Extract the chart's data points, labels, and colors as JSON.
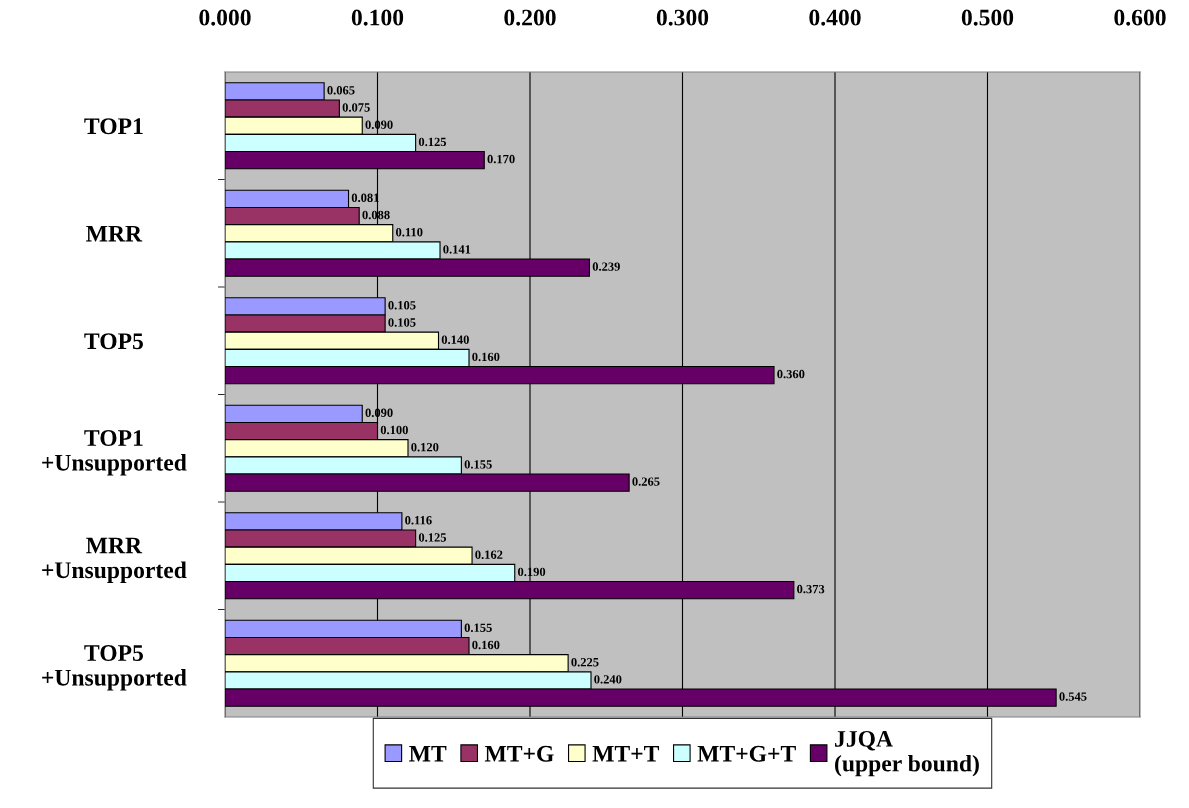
{
  "chart_data": {
    "type": "bar",
    "orientation": "horizontal",
    "categories": [
      "TOP1",
      "MRR",
      "TOP5",
      "TOP1\n+Unsupported",
      "MRR\n+Unsupported",
      "TOP5\n+Unsupported"
    ],
    "series": [
      {
        "name": "MT",
        "color": "#9999ff",
        "values": [
          0.065,
          0.081,
          0.105,
          0.09,
          0.116,
          0.155
        ],
        "value_labels": [
          "0.065",
          "0.081",
          "0.105",
          "0.090",
          "0.116",
          "0.155"
        ]
      },
      {
        "name": "MT+G",
        "color": "#993366",
        "values": [
          0.075,
          0.088,
          0.105,
          0.1,
          0.125,
          0.16
        ],
        "value_labels": [
          "0.075",
          "0.088",
          "0.105",
          "0.100",
          "0.125",
          "0.160"
        ]
      },
      {
        "name": "MT+T",
        "color": "#ffffcc",
        "values": [
          0.09,
          0.11,
          0.14,
          0.12,
          0.162,
          0.225
        ],
        "value_labels": [
          "0.090",
          "0.110",
          "0.140",
          "0.120",
          "0.162",
          "0.225"
        ]
      },
      {
        "name": "MT+G+T",
        "color": "#ccffff",
        "values": [
          0.125,
          0.141,
          0.16,
          0.155,
          0.19,
          0.24
        ],
        "value_labels": [
          "0.125",
          "0.141",
          "0.160",
          "0.155",
          "0.190",
          "0.240"
        ]
      },
      {
        "name": "JJQA\n(upper bound)",
        "color": "#660066",
        "values": [
          0.17,
          0.239,
          0.36,
          0.265,
          0.373,
          0.545
        ],
        "value_labels": [
          "0.170",
          "0.239",
          "0.360",
          "0.265",
          "0.373",
          "0.545"
        ]
      }
    ],
    "xlim": [
      0,
      0.6
    ],
    "xticks": [
      {
        "value": 0,
        "label": "0.000"
      },
      {
        "value": 0.1,
        "label": "0.100"
      },
      {
        "value": 0.2,
        "label": "0.200"
      },
      {
        "value": 0.3,
        "label": "0.300"
      },
      {
        "value": 0.4,
        "label": "0.400"
      },
      {
        "value": 0.5,
        "label": "0.500"
      },
      {
        "value": 0.6,
        "label": "0.600"
      }
    ],
    "grid": "x",
    "legend": "bottom"
  }
}
